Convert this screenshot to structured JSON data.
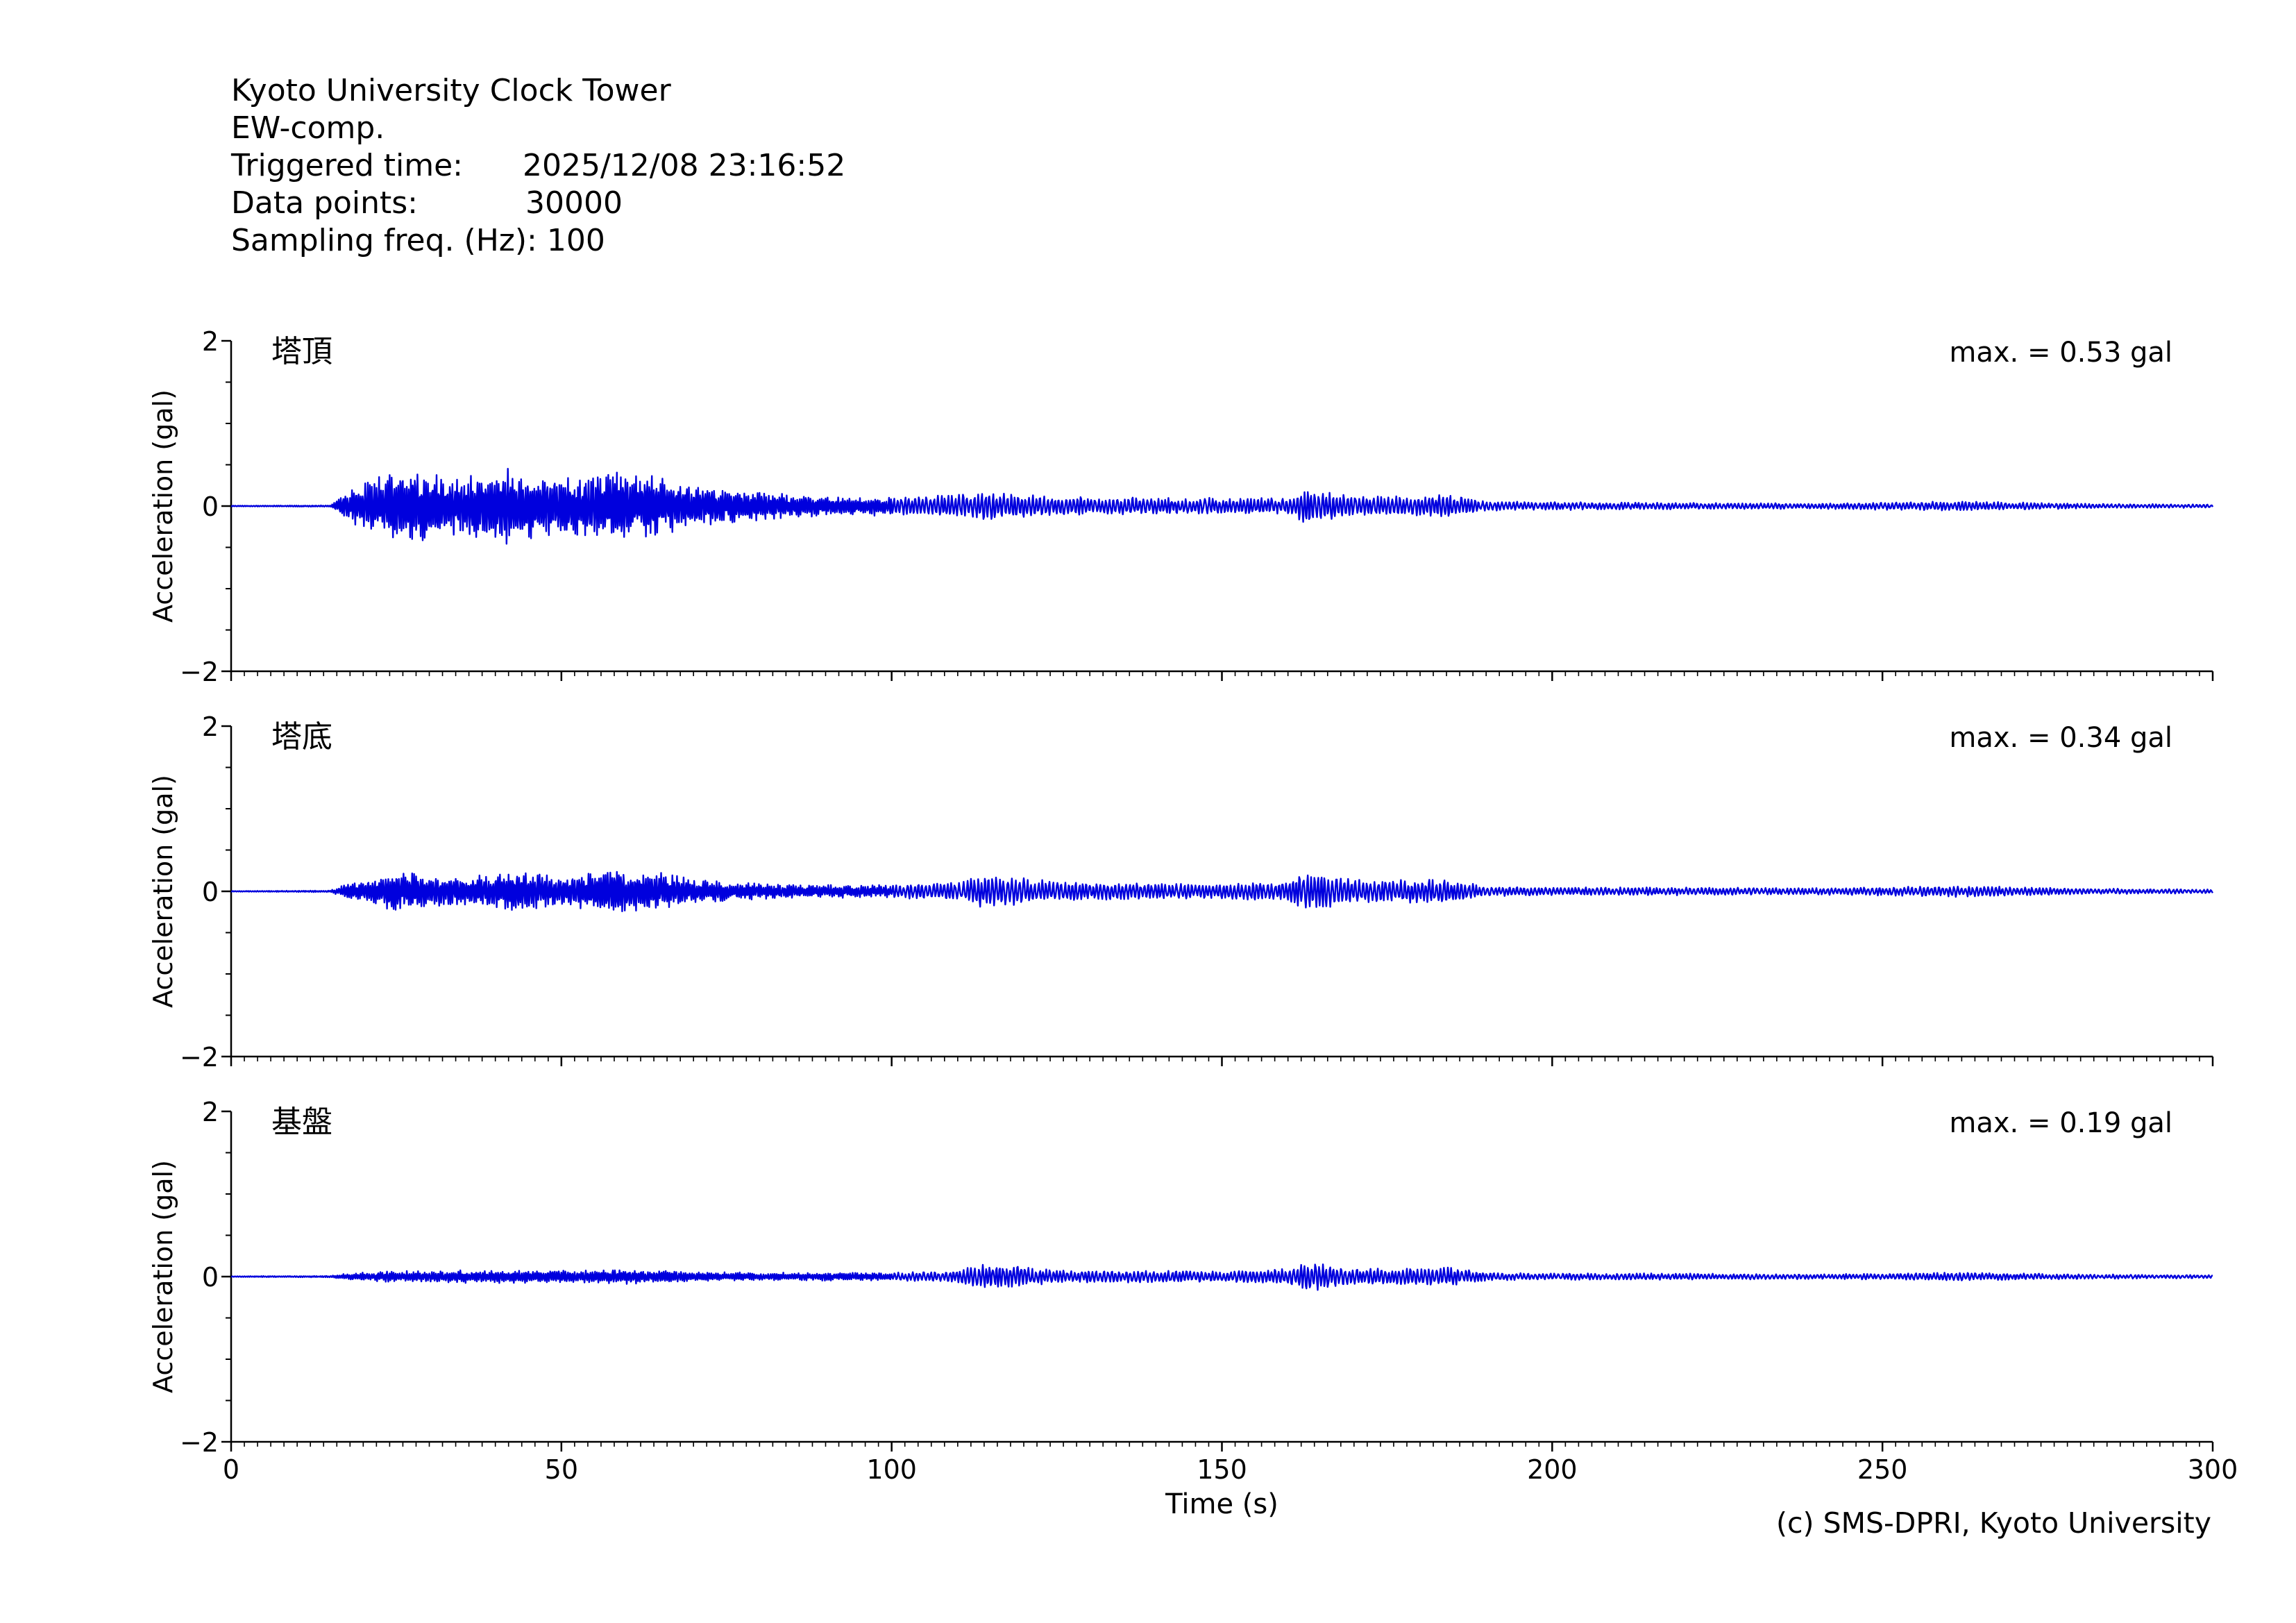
{
  "header": {
    "station": "Kyoto University Clock Tower",
    "component": "EW-comp.",
    "triggered_label": "Triggered time:",
    "triggered_value": "2025/12/08 23:16:52",
    "points_label": "Data points:",
    "points_value": "30000",
    "freq_label": "Sampling freq. (Hz):",
    "freq_value": "100"
  },
  "credit": "(c) SMS-DPRI, Kyoto University",
  "colors": {
    "trace": "#0000dd",
    "axis": "#000000"
  },
  "chart_data": [
    {
      "type": "line",
      "label": "塔頂",
      "max_text": "max. = 0.53 gal",
      "peak": 0.53,
      "ylabel": "Acceleration (gal)",
      "xlim": [
        0,
        300
      ],
      "ylim": [
        -2,
        2
      ],
      "yticks": [
        "2",
        "0",
        "−2"
      ],
      "envelope": {
        "t": [
          0,
          15,
          18,
          22,
          25,
          30,
          35,
          40,
          42,
          45,
          50,
          55,
          58,
          60,
          65,
          70,
          80,
          90,
          100,
          110,
          113,
          118,
          125,
          140,
          150,
          160,
          163,
          170,
          180,
          184,
          190,
          200,
          220,
          240,
          262,
          280,
          300
        ],
        "a": [
          0.005,
          0.01,
          0.2,
          0.35,
          0.5,
          0.4,
          0.35,
          0.48,
          0.5,
          0.4,
          0.35,
          0.4,
          0.45,
          0.42,
          0.4,
          0.25,
          0.18,
          0.12,
          0.12,
          0.14,
          0.17,
          0.16,
          0.12,
          0.1,
          0.1,
          0.1,
          0.22,
          0.12,
          0.12,
          0.15,
          0.06,
          0.05,
          0.04,
          0.035,
          0.06,
          0.03,
          0.02
        ]
      }
    },
    {
      "type": "line",
      "label": "塔底",
      "max_text": "max. = 0.34 gal",
      "peak": 0.34,
      "ylabel": "Acceleration (gal)",
      "xlim": [
        0,
        300
      ],
      "ylim": [
        -2,
        2
      ],
      "yticks": [
        "2",
        "0",
        "−2"
      ],
      "envelope": {
        "t": [
          0,
          15,
          18,
          22,
          25,
          30,
          35,
          40,
          42,
          45,
          50,
          55,
          58,
          60,
          65,
          70,
          80,
          90,
          100,
          110,
          113,
          118,
          125,
          140,
          150,
          160,
          163,
          170,
          180,
          184,
          190,
          200,
          220,
          240,
          262,
          280,
          300
        ],
        "a": [
          0.005,
          0.01,
          0.12,
          0.18,
          0.26,
          0.2,
          0.18,
          0.24,
          0.26,
          0.22,
          0.2,
          0.24,
          0.3,
          0.26,
          0.24,
          0.15,
          0.1,
          0.08,
          0.08,
          0.12,
          0.2,
          0.18,
          0.12,
          0.1,
          0.1,
          0.12,
          0.24,
          0.14,
          0.14,
          0.16,
          0.06,
          0.05,
          0.05,
          0.04,
          0.07,
          0.035,
          0.025
        ]
      }
    },
    {
      "type": "line",
      "label": "基盤",
      "max_text": "max. = 0.19 gal",
      "peak": 0.19,
      "ylabel": "Acceleration (gal)",
      "xlim": [
        0,
        300
      ],
      "ylim": [
        -2,
        2
      ],
      "yticks": [
        "2",
        "0",
        "−2"
      ],
      "envelope": {
        "t": [
          0,
          15,
          18,
          22,
          25,
          30,
          35,
          40,
          45,
          50,
          55,
          60,
          65,
          70,
          80,
          90,
          100,
          110,
          113,
          118,
          125,
          140,
          150,
          160,
          163,
          170,
          180,
          184,
          190,
          200,
          220,
          240,
          262,
          280,
          300
        ],
        "a": [
          0.005,
          0.01,
          0.05,
          0.06,
          0.07,
          0.07,
          0.08,
          0.08,
          0.08,
          0.08,
          0.08,
          0.09,
          0.08,
          0.06,
          0.05,
          0.05,
          0.05,
          0.07,
          0.16,
          0.14,
          0.08,
          0.07,
          0.07,
          0.1,
          0.19,
          0.1,
          0.1,
          0.13,
          0.05,
          0.04,
          0.04,
          0.03,
          0.05,
          0.03,
          0.02
        ]
      }
    }
  ],
  "xaxis": {
    "label": "Time (s)",
    "ticks": [
      "0",
      "50",
      "100",
      "150",
      "200",
      "250",
      "300"
    ]
  }
}
